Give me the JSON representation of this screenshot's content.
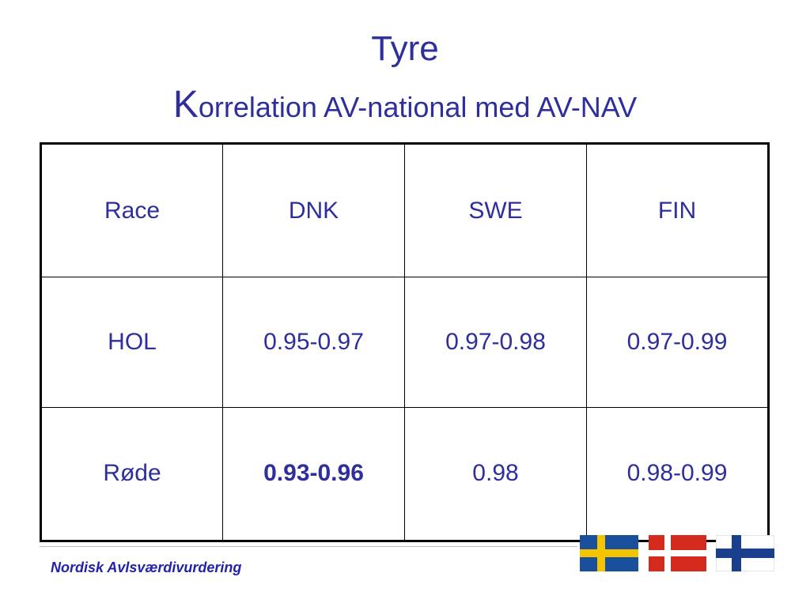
{
  "header": {
    "title": "Tyre",
    "subtitle": "Korrelation AV-national med AV-NAV"
  },
  "table": {
    "rows": [
      [
        "Race",
        "DNK",
        "SWE",
        "FIN"
      ],
      [
        "HOL",
        "0.95-0.97",
        "0.97-0.98",
        "0.97-0.99"
      ],
      [
        "Røde",
        "0.93-0.96",
        "0.98",
        "0.98-0.99"
      ]
    ]
  },
  "footer": {
    "text": "Nordisk Avlsværdivurdering"
  }
}
